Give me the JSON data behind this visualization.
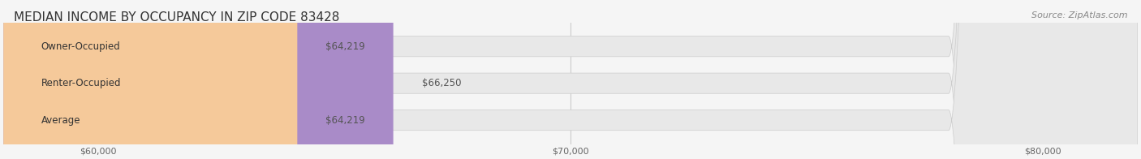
{
  "title": "MEDIAN INCOME BY OCCUPANCY IN ZIP CODE 83428",
  "source": "Source: ZipAtlas.com",
  "categories": [
    "Owner-Occupied",
    "Renter-Occupied",
    "Average"
  ],
  "values": [
    64219,
    66250,
    64219
  ],
  "bar_colors": [
    "#7dd4d4",
    "#a98bc8",
    "#f5c99a"
  ],
  "value_labels": [
    "$64,219",
    "$66,250",
    "$64,219"
  ],
  "xlim_min": 58000,
  "xlim_max": 82000,
  "xticks": [
    60000,
    70000,
    80000
  ],
  "xtick_labels": [
    "$60,000",
    "$70,000",
    "$80,000"
  ],
  "bar_height": 0.55,
  "bg_color": "#f0f0f0",
  "bar_bg_color": "#e8e8e8",
  "title_fontsize": 11,
  "label_fontsize": 8.5,
  "tick_fontsize": 8,
  "source_fontsize": 8
}
